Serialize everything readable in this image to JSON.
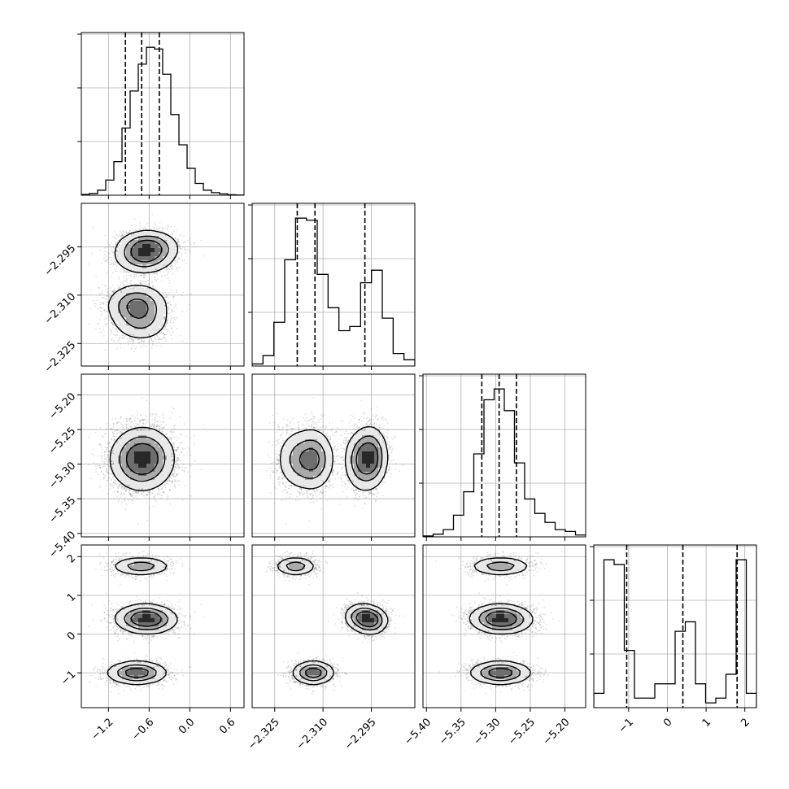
{
  "chart_data": {
    "type": "corner",
    "grid": true,
    "params": [
      {
        "range": [
          -1.6,
          0.8
        ],
        "ticks": [
          -1.2,
          -0.6,
          0.0,
          0.6
        ],
        "tick_labels": [
          "−1.2",
          "−0.6",
          "0.0",
          "0.6"
        ],
        "quantiles": [
          -0.95,
          -0.71,
          -0.45
        ]
      },
      {
        "range": [
          -2.332,
          -2.2815
        ],
        "ticks": [
          -2.325,
          -2.31,
          -2.295
        ],
        "tick_labels": [
          "−2.325",
          "−2.310",
          "−2.295"
        ],
        "quantiles": [
          -2.318,
          -2.3125,
          -2.297
        ]
      },
      {
        "range": [
          -5.405,
          -5.17
        ],
        "ticks": [
          -5.4,
          -5.35,
          -5.3,
          -5.25,
          -5.2
        ],
        "tick_labels": [
          "−5.40",
          "−5.35",
          "−5.30",
          "−5.25",
          "−5.20"
        ],
        "quantiles": [
          -5.32,
          -5.295,
          -5.27
        ]
      },
      {
        "range": [
          -1.9,
          2.3
        ],
        "ticks": [
          -1,
          0,
          1,
          2
        ],
        "tick_labels": [
          "−1",
          "0",
          "1",
          "2"
        ],
        "quantiles": [
          -1.05,
          0.4,
          1.8
        ]
      }
    ],
    "histograms": [
      {
        "param": 0,
        "counts": [
          0.5,
          1,
          3,
          9,
          20,
          40,
          62,
          78,
          88,
          87,
          72,
          48,
          30,
          16,
          7,
          3,
          1.5,
          0.8,
          0.3,
          0.1
        ]
      },
      {
        "param": 1,
        "counts": [
          1,
          5,
          21,
          51,
          71,
          70,
          44,
          28,
          17,
          19,
          40,
          46,
          23,
          6,
          3
        ]
      },
      {
        "param": 2,
        "counts": [
          0.5,
          1.5,
          4,
          12,
          25,
          46,
          76,
          82,
          70,
          41,
          21,
          13,
          8,
          4,
          3,
          1
        ]
      },
      {
        "param": 3,
        "counts": [
          3,
          31,
          30,
          12,
          2,
          2,
          5,
          5,
          16,
          18,
          5,
          1,
          2,
          7,
          31,
          3
        ]
      }
    ],
    "modes": [
      {
        "weight": 0.33,
        "center": [
          -0.78,
          -2.313,
          -5.293,
          -1.0
        ],
        "sd": [
          0.22,
          0.0032,
          0.022,
          0.15
        ]
      },
      {
        "weight": 0.17,
        "center": [
          -0.72,
          -2.3185,
          -5.293,
          1.75
        ],
        "sd": [
          0.22,
          0.0032,
          0.022,
          0.12
        ]
      },
      {
        "weight": 0.3,
        "center": [
          -0.62,
          -2.295,
          -5.29,
          0.35
        ],
        "sd": [
          0.22,
          0.0026,
          0.022,
          0.18
        ]
      },
      {
        "weight": 0.2,
        "center": [
          -0.68,
          -2.2985,
          -5.295,
          0.45
        ],
        "sd": [
          0.22,
          0.0026,
          0.022,
          0.18
        ]
      }
    ]
  }
}
